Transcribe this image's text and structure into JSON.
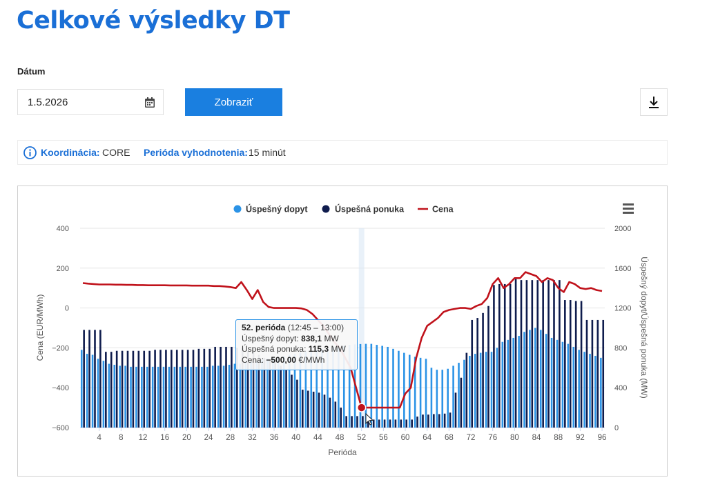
{
  "page": {
    "title": "Celkové výsledky DT"
  },
  "filter": {
    "date_label": "Dátum",
    "date_value": "1.5.2026",
    "show_label": "Zobraziť"
  },
  "info": {
    "coordination_label": "Koordinácia:",
    "coordination_value": "CORE",
    "period_label": "Perióda vyhodnotenia:",
    "period_value": "15 minút"
  },
  "tooltip": {
    "period": "52. perióda",
    "time": "(12:45 – 13:00)",
    "demand_label": "Úspešný dopyt:",
    "demand_value": "838,1",
    "demand_unit": "MW",
    "supply_label": "Úspešná ponuka:",
    "supply_value": "115,3",
    "supply_unit": "MW",
    "price_label": "Cena:",
    "price_value": "−500,00",
    "price_unit": "€/MWh"
  },
  "colors": {
    "demand": "#2b93e6",
    "supply": "#0f1c4d",
    "price": "#c0121b",
    "accent": "#1a6fd6"
  },
  "chart_data": {
    "type": "bar",
    "xlabel": "Perióda",
    "ylabel_left": "Cena (EUR/MWh)",
    "ylabel_right": "Úspešný dopyt/Úspešná ponuka (MW)",
    "ylim_left": [
      -600,
      400
    ],
    "ylim_right": [
      0,
      2000
    ],
    "yticks_left": [
      -600,
      -400,
      -200,
      0,
      200,
      400
    ],
    "yticks_left_labels": [
      "−600",
      "−400",
      "−200",
      "0",
      "200",
      "400"
    ],
    "yticks_right": [
      0,
      400,
      800,
      1200,
      1600,
      2000
    ],
    "xticks": [
      4,
      8,
      12,
      16,
      20,
      24,
      28,
      32,
      36,
      40,
      44,
      48,
      52,
      56,
      60,
      64,
      68,
      72,
      76,
      80,
      84,
      88,
      92,
      96
    ],
    "legend_position": "top-center",
    "highlight_period": 52,
    "x": [
      1,
      2,
      3,
      4,
      5,
      6,
      7,
      8,
      9,
      10,
      11,
      12,
      13,
      14,
      15,
      16,
      17,
      18,
      19,
      20,
      21,
      22,
      23,
      24,
      25,
      26,
      27,
      28,
      29,
      30,
      31,
      32,
      33,
      34,
      35,
      36,
      37,
      38,
      39,
      40,
      41,
      42,
      43,
      44,
      45,
      46,
      47,
      48,
      49,
      50,
      51,
      52,
      53,
      54,
      55,
      56,
      57,
      58,
      59,
      60,
      61,
      62,
      63,
      64,
      65,
      66,
      67,
      68,
      69,
      70,
      71,
      72,
      73,
      74,
      75,
      76,
      77,
      78,
      79,
      80,
      81,
      82,
      83,
      84,
      85,
      86,
      87,
      88,
      89,
      90,
      91,
      92,
      93,
      94,
      95,
      96
    ],
    "series": [
      {
        "name": "Úspešný dopyt",
        "axis": "right",
        "type": "bar",
        "values": [
          780,
          740,
          730,
          690,
          670,
          640,
          630,
          620,
          620,
          610,
          610,
          610,
          610,
          610,
          610,
          610,
          610,
          610,
          610,
          610,
          610,
          610,
          610,
          610,
          620,
          620,
          620,
          630,
          640,
          640,
          650,
          660,
          670,
          680,
          690,
          700,
          710,
          720,
          730,
          740,
          750,
          760,
          770,
          780,
          790,
          800,
          810,
          820,
          820,
          830,
          835,
          838.1,
          840,
          840,
          830,
          820,
          810,
          790,
          770,
          750,
          730,
          710,
          700,
          690,
          600,
          580,
          580,
          590,
          620,
          650,
          680,
          720,
          740,
          750,
          760,
          760,
          800,
          860,
          880,
          900,
          920,
          960,
          980,
          1000,
          980,
          940,
          900,
          880,
          860,
          840,
          810,
          780,
          760,
          740,
          720,
          700
        ]
      },
      {
        "name": "Úspešná ponuka",
        "axis": "right",
        "type": "bar",
        "values": [
          980,
          980,
          980,
          980,
          760,
          760,
          770,
          770,
          770,
          770,
          770,
          770,
          770,
          780,
          780,
          780,
          780,
          780,
          780,
          780,
          780,
          790,
          790,
          790,
          810,
          810,
          810,
          810,
          800,
          800,
          770,
          760,
          730,
          700,
          680,
          660,
          620,
          580,
          530,
          480,
          380,
          370,
          360,
          350,
          330,
          300,
          260,
          200,
          115,
          115,
          115,
          115.3,
          100,
          80,
          80,
          80,
          80,
          80,
          80,
          80,
          80,
          110,
          130,
          130,
          135,
          135,
          140,
          150,
          350,
          500,
          750,
          1080,
          1100,
          1150,
          1220,
          1430,
          1440,
          1440,
          1440,
          1490,
          1480,
          1480,
          1480,
          1480,
          1480,
          1480,
          1480,
          1480,
          1280,
          1280,
          1270,
          1270,
          1080,
          1080,
          1080,
          1080
        ]
      },
      {
        "name": "Cena",
        "axis": "left",
        "type": "line",
        "values": [
          125,
          122,
          120,
          118,
          118,
          118,
          117,
          117,
          116,
          116,
          115,
          115,
          114,
          114,
          114,
          114,
          113,
          113,
          113,
          113,
          112,
          112,
          112,
          112,
          110,
          110,
          108,
          105,
          100,
          130,
          90,
          45,
          90,
          30,
          5,
          0,
          0,
          0,
          0,
          0,
          -2,
          -10,
          -30,
          -60,
          -90,
          -130,
          -170,
          -200,
          -250,
          -300,
          -400,
          -500,
          -500,
          -500,
          -500,
          -500,
          -500,
          -500,
          -500,
          -430,
          -400,
          -250,
          -150,
          -90,
          -70,
          -50,
          -20,
          -10,
          -5,
          0,
          0,
          -5,
          10,
          20,
          50,
          120,
          150,
          100,
          120,
          150,
          150,
          180,
          170,
          160,
          130,
          150,
          140,
          100,
          80,
          130,
          120,
          100,
          95,
          100,
          90,
          85
        ]
      }
    ]
  }
}
